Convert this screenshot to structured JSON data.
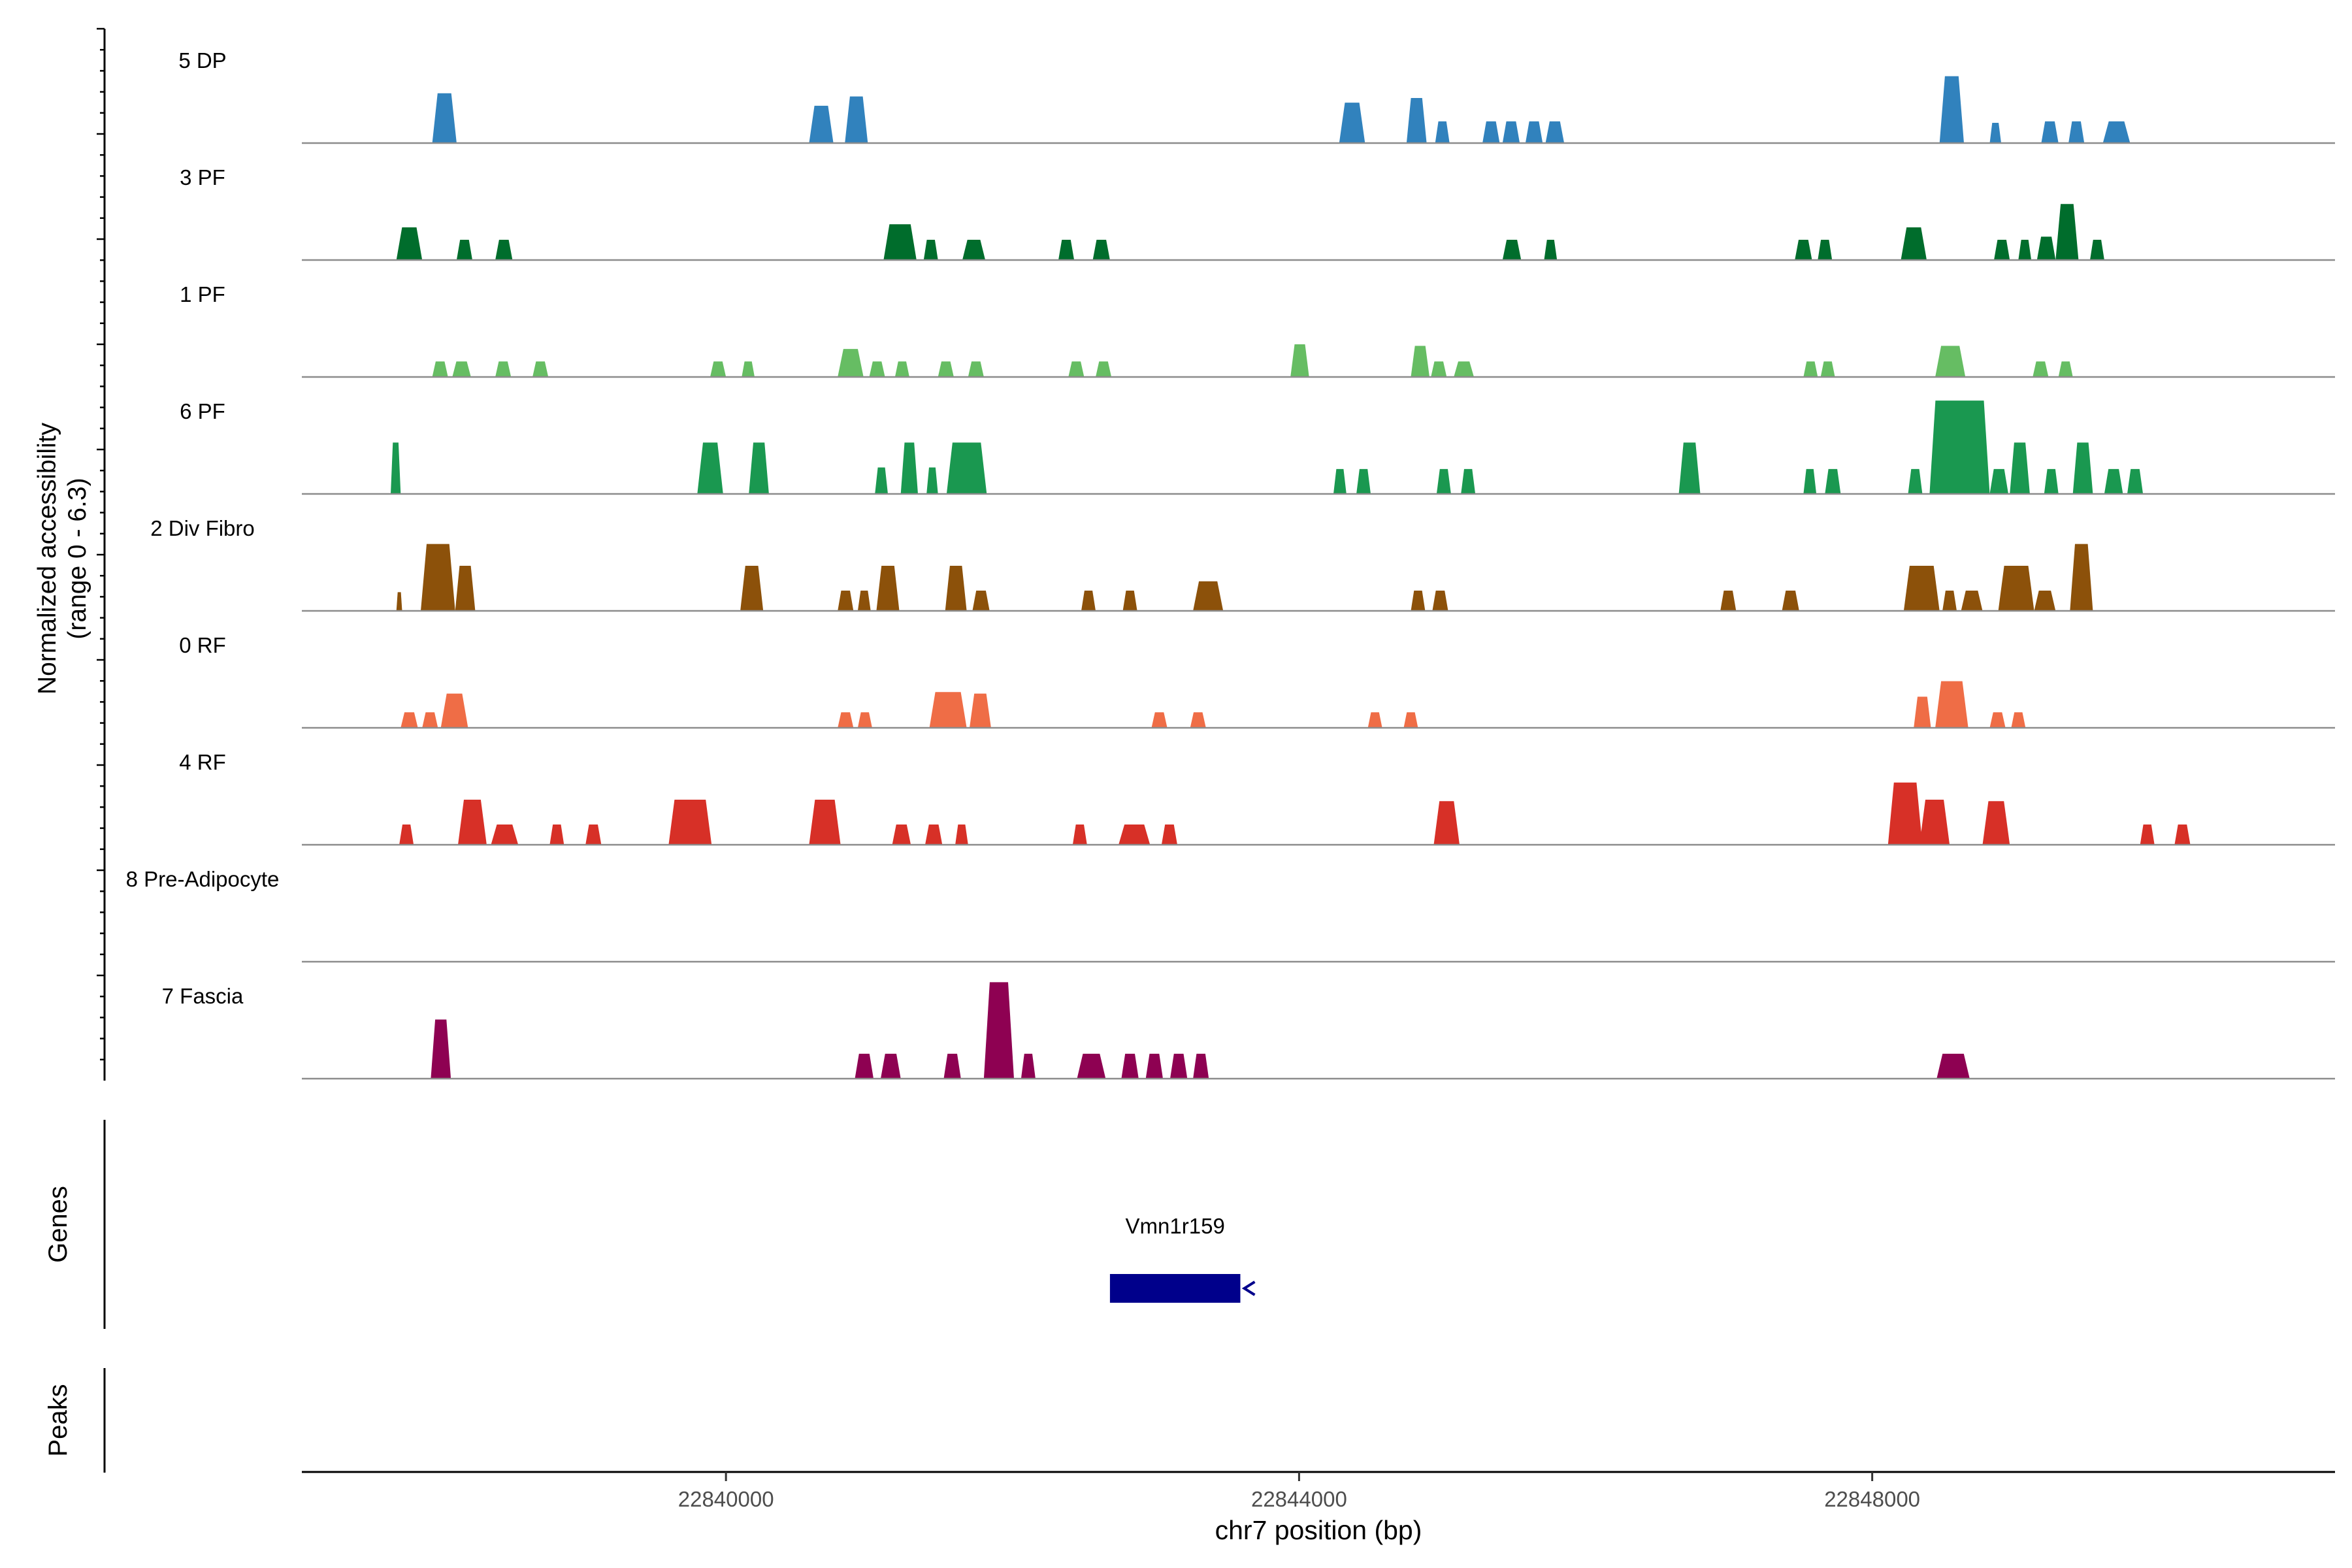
{
  "chart_data": {
    "type": "area",
    "title": "",
    "xlabel": "chr7 position (bp)",
    "ylabel_lines": [
      "Normalized accessibility",
      "(range 0 - 6.3)"
    ],
    "ylim": [
      0,
      6.3
    ],
    "xlim": [
      22837040,
      22851230
    ],
    "x_ticks": [
      22840000,
      22844000,
      22848000
    ],
    "x_tick_labels": [
      "22840000",
      "22844000",
      "22848000"
    ],
    "gene_panel_label": "Genes",
    "peaks_panel_label": "Peaks",
    "genes": [
      {
        "name": "Vmn1r159",
        "start": 22842680,
        "end": 22843590,
        "strand": "-",
        "color": "#00008B"
      }
    ],
    "series": [
      {
        "name": "5 DP",
        "color": "#3182BD",
        "peaks": [
          [
            22837950,
            22838120,
            3.2
          ],
          [
            22840580,
            22840750,
            2.4
          ],
          [
            22840830,
            22840990,
            3.0
          ],
          [
            22844280,
            22844460,
            2.6
          ],
          [
            22844750,
            22844890,
            2.9
          ],
          [
            22844950,
            22845050,
            1.4
          ],
          [
            22845280,
            22845400,
            1.4
          ],
          [
            22845420,
            22845540,
            1.4
          ],
          [
            22845580,
            22845700,
            1.4
          ],
          [
            22845720,
            22845850,
            1.4
          ],
          [
            22848470,
            22848640,
            4.3
          ],
          [
            22848820,
            22848900,
            1.3
          ],
          [
            22849180,
            22849300,
            1.4
          ],
          [
            22849370,
            22849480,
            1.4
          ],
          [
            22849610,
            22849800,
            1.4
          ]
        ]
      },
      {
        "name": "3 PF",
        "color": "#006D2C",
        "peaks": [
          [
            22837700,
            22837880,
            2.1
          ],
          [
            22838120,
            22838230,
            1.3
          ],
          [
            22838390,
            22838510,
            1.3
          ],
          [
            22841100,
            22841330,
            2.3
          ],
          [
            22841380,
            22841480,
            1.3
          ],
          [
            22841650,
            22841810,
            1.3
          ],
          [
            22842320,
            22842430,
            1.3
          ],
          [
            22842560,
            22842680,
            1.3
          ],
          [
            22845420,
            22845550,
            1.3
          ],
          [
            22845710,
            22845800,
            1.3
          ],
          [
            22847460,
            22847580,
            1.3
          ],
          [
            22847620,
            22847720,
            1.3
          ],
          [
            22848200,
            22848380,
            2.1
          ],
          [
            22848850,
            22848960,
            1.3
          ],
          [
            22849020,
            22849110,
            1.3
          ],
          [
            22849150,
            22849280,
            1.5
          ],
          [
            22849280,
            22849440,
            3.6
          ],
          [
            22849520,
            22849620,
            1.3
          ]
        ]
      },
      {
        "name": "1 PF",
        "color": "#66BD63",
        "peaks": [
          [
            22837950,
            22838060,
            1.0
          ],
          [
            22838090,
            22838220,
            1.0
          ],
          [
            22838390,
            22838500,
            1.0
          ],
          [
            22838650,
            22838760,
            1.0
          ],
          [
            22839890,
            22840000,
            1.0
          ],
          [
            22840110,
            22840200,
            1.0
          ],
          [
            22840780,
            22840960,
            1.8
          ],
          [
            22841000,
            22841110,
            1.0
          ],
          [
            22841180,
            22841280,
            1.0
          ],
          [
            22841480,
            22841590,
            1.0
          ],
          [
            22841690,
            22841800,
            1.0
          ],
          [
            22842390,
            22842500,
            1.0
          ],
          [
            22842580,
            22842690,
            1.0
          ],
          [
            22843940,
            22844070,
            2.1
          ],
          [
            22844780,
            22844910,
            2.0
          ],
          [
            22844920,
            22845030,
            1.0
          ],
          [
            22845080,
            22845220,
            1.0
          ],
          [
            22847520,
            22847620,
            1.0
          ],
          [
            22847640,
            22847740,
            1.0
          ],
          [
            22848440,
            22848650,
            2.0
          ],
          [
            22849120,
            22849230,
            1.0
          ],
          [
            22849300,
            22849400,
            1.0
          ]
        ]
      },
      {
        "name": "6 PF",
        "color": "#1A9850",
        "peaks": [
          [
            22837660,
            22837730,
            3.3
          ],
          [
            22839800,
            22839980,
            3.3
          ],
          [
            22840160,
            22840300,
            3.3
          ],
          [
            22841040,
            22841130,
            1.7
          ],
          [
            22841220,
            22841340,
            3.3
          ],
          [
            22841400,
            22841480,
            1.7
          ],
          [
            22841540,
            22841820,
            3.3
          ],
          [
            22844240,
            22844330,
            1.6
          ],
          [
            22844400,
            22844500,
            1.6
          ],
          [
            22844960,
            22845060,
            1.6
          ],
          [
            22845130,
            22845230,
            1.6
          ],
          [
            22846650,
            22846800,
            3.3
          ],
          [
            22847520,
            22847610,
            1.6
          ],
          [
            22847670,
            22847780,
            1.6
          ],
          [
            22848250,
            22848350,
            1.6
          ],
          [
            22848400,
            22848820,
            6.0
          ],
          [
            22848820,
            22848950,
            1.6
          ],
          [
            22848960,
            22849100,
            3.3
          ],
          [
            22849200,
            22849300,
            1.6
          ],
          [
            22849400,
            22849540,
            3.3
          ],
          [
            22849620,
            22849750,
            1.6
          ],
          [
            22849780,
            22849890,
            1.6
          ]
        ]
      },
      {
        "name": "2 Div Fibro",
        "color": "#8C510A",
        "peaks": [
          [
            22837700,
            22837740,
            1.2
          ],
          [
            22837870,
            22838110,
            4.3
          ],
          [
            22838110,
            22838250,
            2.9
          ],
          [
            22840100,
            22840260,
            2.9
          ],
          [
            22840780,
            22840890,
            1.3
          ],
          [
            22840920,
            22841010,
            1.3
          ],
          [
            22841050,
            22841210,
            2.9
          ],
          [
            22841530,
            22841680,
            2.9
          ],
          [
            22841720,
            22841840,
            1.3
          ],
          [
            22842480,
            22842580,
            1.3
          ],
          [
            22842770,
            22842870,
            1.3
          ],
          [
            22843260,
            22843470,
            1.9
          ],
          [
            22844780,
            22844880,
            1.3
          ],
          [
            22844930,
            22845040,
            1.3
          ],
          [
            22846940,
            22847050,
            1.3
          ],
          [
            22847370,
            22847490,
            1.3
          ],
          [
            22848220,
            22848470,
            2.9
          ],
          [
            22848490,
            22848590,
            1.3
          ],
          [
            22848620,
            22848770,
            1.3
          ],
          [
            22848880,
            22849130,
            2.9
          ],
          [
            22849130,
            22849280,
            1.3
          ],
          [
            22849380,
            22849540,
            4.3
          ]
        ]
      },
      {
        "name": "0 RF",
        "color": "#EF6D46",
        "peaks": [
          [
            22837730,
            22837850,
            1.0
          ],
          [
            22837880,
            22837990,
            1.0
          ],
          [
            22838010,
            22838200,
            2.2
          ],
          [
            22840780,
            22840890,
            1.0
          ],
          [
            22840920,
            22841020,
            1.0
          ],
          [
            22841420,
            22841680,
            2.3
          ],
          [
            22841700,
            22841850,
            2.2
          ],
          [
            22842970,
            22843080,
            1.0
          ],
          [
            22843240,
            22843350,
            1.0
          ],
          [
            22844480,
            22844580,
            1.0
          ],
          [
            22844730,
            22844830,
            1.0
          ],
          [
            22848290,
            22848410,
            2.0
          ],
          [
            22848440,
            22848670,
            3.0
          ],
          [
            22848820,
            22848930,
            1.0
          ],
          [
            22848970,
            22849070,
            1.0
          ]
        ]
      },
      {
        "name": "4 RF",
        "color": "#D73027",
        "peaks": [
          [
            22837720,
            22837820,
            1.3
          ],
          [
            22838130,
            22838330,
            2.9
          ],
          [
            22838360,
            22838550,
            1.3
          ],
          [
            22838770,
            22838870,
            1.3
          ],
          [
            22839020,
            22839130,
            1.3
          ],
          [
            22839600,
            22839900,
            2.9
          ],
          [
            22840580,
            22840800,
            2.9
          ],
          [
            22841160,
            22841290,
            1.3
          ],
          [
            22841390,
            22841510,
            1.3
          ],
          [
            22841600,
            22841690,
            1.3
          ],
          [
            22842420,
            22842520,
            1.3
          ],
          [
            22842740,
            22842960,
            1.3
          ],
          [
            22843040,
            22843150,
            1.3
          ],
          [
            22844940,
            22845120,
            2.8
          ],
          [
            22848110,
            22848350,
            4.0
          ],
          [
            22848330,
            22848540,
            2.9
          ],
          [
            22848770,
            22848960,
            2.8
          ],
          [
            22849870,
            22849970,
            1.3
          ],
          [
            22850110,
            22850220,
            1.3
          ]
        ]
      },
      {
        "name": "8 Pre-Adipocyte",
        "color": "#1F9E89",
        "peaks": []
      },
      {
        "name": "7 Fascia",
        "color": "#8E0152",
        "peaks": [
          [
            22837940,
            22838080,
            3.8
          ],
          [
            22840900,
            22841030,
            1.6
          ],
          [
            22841080,
            22841220,
            1.6
          ],
          [
            22841520,
            22841640,
            1.6
          ],
          [
            22841800,
            22842010,
            6.2
          ],
          [
            22842060,
            22842160,
            1.6
          ],
          [
            22842450,
            22842650,
            1.6
          ],
          [
            22842760,
            22842880,
            1.6
          ],
          [
            22842930,
            22843050,
            1.6
          ],
          [
            22843100,
            22843220,
            1.6
          ],
          [
            22843260,
            22843370,
            1.6
          ],
          [
            22848450,
            22848680,
            1.6
          ]
        ]
      }
    ]
  }
}
